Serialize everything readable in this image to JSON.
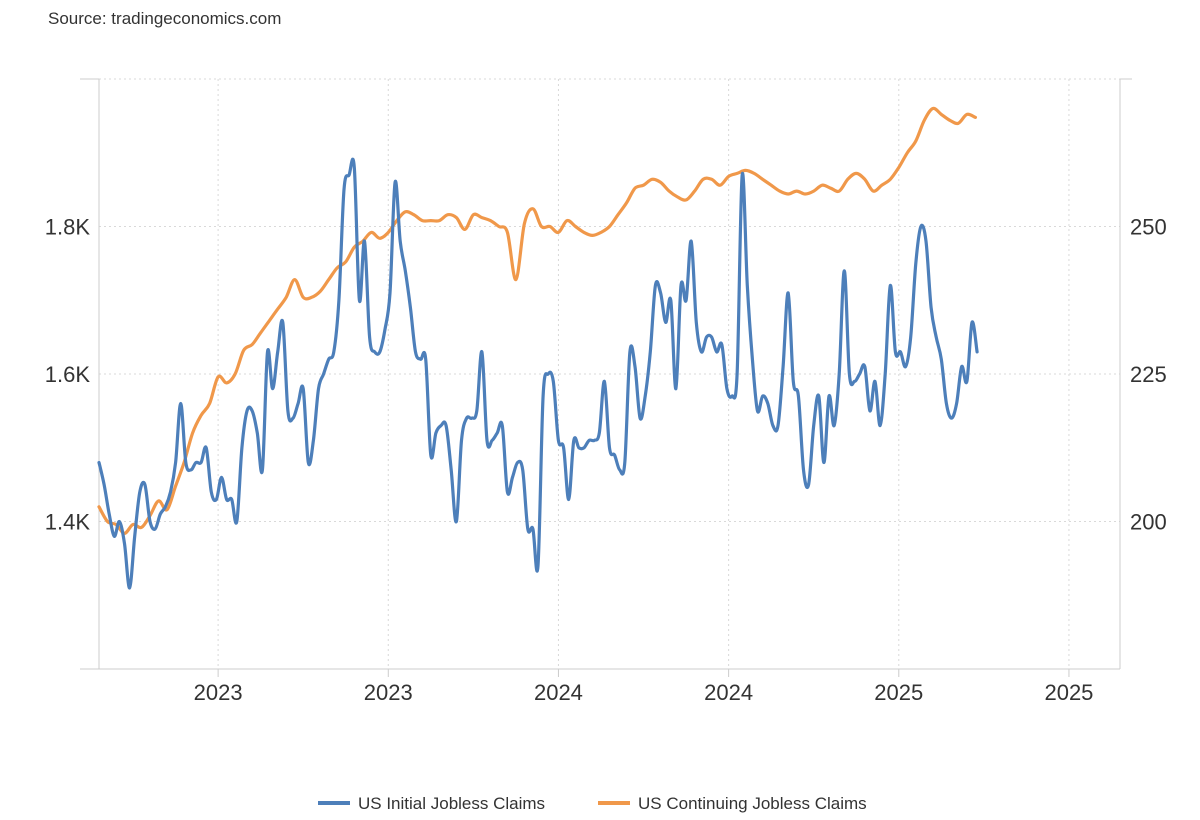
{
  "source": "Source: tradingeconomics.com",
  "colors": {
    "initial": "#4d7fba",
    "continuing": "#f0984a",
    "grid": "#d9d9d9",
    "axis": "#cccccc"
  },
  "chart_data": {
    "type": "line",
    "title": "",
    "xlabel": "",
    "x_tick_labels": [
      "2023",
      "2023",
      "2024",
      "2024",
      "2025",
      "2025"
    ],
    "x_tick_positions": [
      2.05,
      3.05,
      4.05,
      5.05,
      6.05,
      7.05
    ],
    "xlim": [
      1.35,
      7.35
    ],
    "grid": true,
    "legend_position": "bottom-center",
    "left_axis": {
      "label": "",
      "ylim": [
        1.2,
        2.0
      ],
      "ticks": [
        1.4,
        1.6,
        1.8
      ],
      "tick_labels": [
        "1.4K",
        "1.6K",
        "1.8K"
      ]
    },
    "right_axis": {
      "label": "",
      "ylim": [
        175,
        275
      ],
      "ticks": [
        200,
        225,
        250
      ],
      "tick_labels": [
        "200",
        "225",
        "250"
      ]
    },
    "series": [
      {
        "name": "US Initial Jobless Claims",
        "axis": "left",
        "color": "#4d7fba",
        "points": [
          [
            1.35,
            1.48
          ],
          [
            1.38,
            1.45
          ],
          [
            1.41,
            1.41
          ],
          [
            1.44,
            1.38
          ],
          [
            1.47,
            1.4
          ],
          [
            1.5,
            1.37
          ],
          [
            1.53,
            1.31
          ],
          [
            1.56,
            1.38
          ],
          [
            1.59,
            1.44
          ],
          [
            1.62,
            1.45
          ],
          [
            1.65,
            1.4
          ],
          [
            1.68,
            1.39
          ],
          [
            1.71,
            1.41
          ],
          [
            1.74,
            1.42
          ],
          [
            1.77,
            1.44
          ],
          [
            1.8,
            1.48
          ],
          [
            1.83,
            1.56
          ],
          [
            1.86,
            1.48
          ],
          [
            1.89,
            1.47
          ],
          [
            1.92,
            1.48
          ],
          [
            1.95,
            1.48
          ],
          [
            1.98,
            1.5
          ],
          [
            2.01,
            1.44
          ],
          [
            2.04,
            1.43
          ],
          [
            2.07,
            1.46
          ],
          [
            2.1,
            1.43
          ],
          [
            2.13,
            1.43
          ],
          [
            2.16,
            1.4
          ],
          [
            2.19,
            1.5
          ],
          [
            2.22,
            1.55
          ],
          [
            2.25,
            1.55
          ],
          [
            2.28,
            1.52
          ],
          [
            2.31,
            1.47
          ],
          [
            2.34,
            1.63
          ],
          [
            2.37,
            1.58
          ],
          [
            2.4,
            1.63
          ],
          [
            2.43,
            1.67
          ],
          [
            2.46,
            1.55
          ],
          [
            2.49,
            1.54
          ],
          [
            2.52,
            1.56
          ],
          [
            2.55,
            1.58
          ],
          [
            2.58,
            1.48
          ],
          [
            2.61,
            1.51
          ],
          [
            2.64,
            1.58
          ],
          [
            2.67,
            1.6
          ],
          [
            2.7,
            1.62
          ],
          [
            2.73,
            1.63
          ],
          [
            2.76,
            1.7
          ],
          [
            2.79,
            1.85
          ],
          [
            2.82,
            1.87
          ],
          [
            2.85,
            1.88
          ],
          [
            2.88,
            1.7
          ],
          [
            2.91,
            1.78
          ],
          [
            2.94,
            1.65
          ],
          [
            2.97,
            1.63
          ],
          [
            3.0,
            1.63
          ],
          [
            3.03,
            1.66
          ],
          [
            3.06,
            1.71
          ],
          [
            3.09,
            1.86
          ],
          [
            3.12,
            1.78
          ],
          [
            3.15,
            1.74
          ],
          [
            3.18,
            1.69
          ],
          [
            3.21,
            1.63
          ],
          [
            3.24,
            1.62
          ],
          [
            3.27,
            1.62
          ],
          [
            3.3,
            1.49
          ],
          [
            3.33,
            1.52
          ],
          [
            3.36,
            1.53
          ],
          [
            3.39,
            1.53
          ],
          [
            3.42,
            1.47
          ],
          [
            3.45,
            1.4
          ],
          [
            3.48,
            1.51
          ],
          [
            3.51,
            1.54
          ],
          [
            3.54,
            1.54
          ],
          [
            3.57,
            1.55
          ],
          [
            3.6,
            1.63
          ],
          [
            3.63,
            1.51
          ],
          [
            3.66,
            1.51
          ],
          [
            3.69,
            1.52
          ],
          [
            3.72,
            1.53
          ],
          [
            3.75,
            1.44
          ],
          [
            3.78,
            1.46
          ],
          [
            3.81,
            1.48
          ],
          [
            3.84,
            1.47
          ],
          [
            3.87,
            1.39
          ],
          [
            3.9,
            1.39
          ],
          [
            3.93,
            1.34
          ],
          [
            3.96,
            1.57
          ],
          [
            3.99,
            1.6
          ],
          [
            4.02,
            1.59
          ],
          [
            4.05,
            1.51
          ],
          [
            4.08,
            1.5
          ],
          [
            4.11,
            1.43
          ],
          [
            4.14,
            1.51
          ],
          [
            4.17,
            1.5
          ],
          [
            4.2,
            1.5
          ],
          [
            4.23,
            1.51
          ],
          [
            4.26,
            1.51
          ],
          [
            4.29,
            1.52
          ],
          [
            4.32,
            1.59
          ],
          [
            4.35,
            1.5
          ],
          [
            4.38,
            1.49
          ],
          [
            4.41,
            1.47
          ],
          [
            4.44,
            1.48
          ],
          [
            4.47,
            1.63
          ],
          [
            4.5,
            1.61
          ],
          [
            4.53,
            1.54
          ],
          [
            4.56,
            1.57
          ],
          [
            4.59,
            1.63
          ],
          [
            4.62,
            1.72
          ],
          [
            4.65,
            1.71
          ],
          [
            4.68,
            1.67
          ],
          [
            4.71,
            1.7
          ],
          [
            4.74,
            1.58
          ],
          [
            4.77,
            1.72
          ],
          [
            4.8,
            1.7
          ],
          [
            4.83,
            1.78
          ],
          [
            4.86,
            1.67
          ],
          [
            4.89,
            1.63
          ],
          [
            4.92,
            1.65
          ],
          [
            4.95,
            1.65
          ],
          [
            4.98,
            1.63
          ],
          [
            5.01,
            1.64
          ],
          [
            5.04,
            1.58
          ],
          [
            5.07,
            1.57
          ],
          [
            5.1,
            1.6
          ],
          [
            5.13,
            1.87
          ],
          [
            5.16,
            1.72
          ],
          [
            5.19,
            1.62
          ],
          [
            5.22,
            1.55
          ],
          [
            5.25,
            1.57
          ],
          [
            5.28,
            1.56
          ],
          [
            5.31,
            1.53
          ],
          [
            5.34,
            1.53
          ],
          [
            5.37,
            1.61
          ],
          [
            5.4,
            1.71
          ],
          [
            5.43,
            1.59
          ],
          [
            5.46,
            1.57
          ],
          [
            5.49,
            1.47
          ],
          [
            5.52,
            1.45
          ],
          [
            5.55,
            1.53
          ],
          [
            5.58,
            1.57
          ],
          [
            5.61,
            1.48
          ],
          [
            5.64,
            1.57
          ],
          [
            5.67,
            1.53
          ],
          [
            5.7,
            1.6
          ],
          [
            5.73,
            1.74
          ],
          [
            5.76,
            1.6
          ],
          [
            5.79,
            1.59
          ],
          [
            5.82,
            1.6
          ],
          [
            5.85,
            1.61
          ],
          [
            5.88,
            1.55
          ],
          [
            5.91,
            1.59
          ],
          [
            5.94,
            1.53
          ],
          [
            5.97,
            1.6
          ],
          [
            6.0,
            1.72
          ],
          [
            6.03,
            1.63
          ],
          [
            6.06,
            1.63
          ],
          [
            6.09,
            1.61
          ],
          [
            6.12,
            1.65
          ],
          [
            6.15,
            1.75
          ],
          [
            6.18,
            1.8
          ],
          [
            6.21,
            1.78
          ],
          [
            6.24,
            1.69
          ],
          [
            6.27,
            1.65
          ],
          [
            6.3,
            1.62
          ],
          [
            6.33,
            1.56
          ],
          [
            6.36,
            1.54
          ],
          [
            6.39,
            1.56
          ],
          [
            6.42,
            1.61
          ],
          [
            6.45,
            1.59
          ],
          [
            6.48,
            1.67
          ],
          [
            6.51,
            1.63
          ]
        ]
      },
      {
        "name": "US Continuing Jobless Claims",
        "axis": "right",
        "color": "#f0984a",
        "points": [
          [
            1.35,
            202.5
          ],
          [
            1.4,
            200.0
          ],
          [
            1.45,
            199.5
          ],
          [
            1.5,
            198.0
          ],
          [
            1.55,
            199.5
          ],
          [
            1.6,
            199.0
          ],
          [
            1.65,
            201.0
          ],
          [
            1.7,
            203.5
          ],
          [
            1.75,
            202.0
          ],
          [
            1.8,
            206.0
          ],
          [
            1.85,
            210.0
          ],
          [
            1.9,
            215.0
          ],
          [
            1.95,
            218.0
          ],
          [
            2.0,
            220.0
          ],
          [
            2.05,
            224.5
          ],
          [
            2.1,
            223.5
          ],
          [
            2.15,
            225.0
          ],
          [
            2.2,
            229.0
          ],
          [
            2.25,
            230.0
          ],
          [
            2.3,
            232.0
          ],
          [
            2.35,
            234.0
          ],
          [
            2.4,
            236.0
          ],
          [
            2.45,
            238.0
          ],
          [
            2.5,
            241.0
          ],
          [
            2.55,
            238.0
          ],
          [
            2.6,
            238.0
          ],
          [
            2.65,
            239.0
          ],
          [
            2.7,
            241.0
          ],
          [
            2.75,
            243.0
          ],
          [
            2.8,
            244.0
          ],
          [
            2.85,
            246.5
          ],
          [
            2.9,
            247.5
          ],
          [
            2.95,
            249.0
          ],
          [
            3.0,
            248.0
          ],
          [
            3.05,
            249.0
          ],
          [
            3.1,
            251.0
          ],
          [
            3.15,
            252.5
          ],
          [
            3.2,
            252.0
          ],
          [
            3.25,
            251.0
          ],
          [
            3.3,
            251.0
          ],
          [
            3.35,
            251.0
          ],
          [
            3.4,
            252.0
          ],
          [
            3.45,
            251.5
          ],
          [
            3.5,
            249.5
          ],
          [
            3.55,
            252.0
          ],
          [
            3.6,
            251.5
          ],
          [
            3.65,
            251.0
          ],
          [
            3.7,
            250.0
          ],
          [
            3.75,
            249.0
          ],
          [
            3.8,
            241.0
          ],
          [
            3.85,
            250.5
          ],
          [
            3.9,
            253.0
          ],
          [
            3.95,
            250.0
          ],
          [
            4.0,
            250.0
          ],
          [
            4.05,
            249.0
          ],
          [
            4.1,
            251.0
          ],
          [
            4.15,
            250.0
          ],
          [
            4.2,
            249.0
          ],
          [
            4.25,
            248.5
          ],
          [
            4.3,
            249.0
          ],
          [
            4.35,
            250.0
          ],
          [
            4.4,
            252.0
          ],
          [
            4.45,
            254.0
          ],
          [
            4.5,
            256.5
          ],
          [
            4.55,
            257.0
          ],
          [
            4.6,
            258.0
          ],
          [
            4.65,
            257.5
          ],
          [
            4.7,
            256.0
          ],
          [
            4.75,
            255.0
          ],
          [
            4.8,
            254.5
          ],
          [
            4.85,
            256.0
          ],
          [
            4.9,
            258.0
          ],
          [
            4.95,
            258.0
          ],
          [
            5.0,
            257.0
          ],
          [
            5.05,
            258.5
          ],
          [
            5.1,
            259.0
          ],
          [
            5.15,
            259.5
          ],
          [
            5.2,
            259.0
          ],
          [
            5.25,
            258.0
          ],
          [
            5.3,
            257.0
          ],
          [
            5.35,
            256.0
          ],
          [
            5.4,
            255.5
          ],
          [
            5.45,
            256.0
          ],
          [
            5.5,
            255.5
          ],
          [
            5.55,
            256.0
          ],
          [
            5.6,
            257.0
          ],
          [
            5.65,
            256.5
          ],
          [
            5.7,
            256.0
          ],
          [
            5.75,
            258.0
          ],
          [
            5.8,
            259.0
          ],
          [
            5.85,
            258.0
          ],
          [
            5.9,
            256.0
          ],
          [
            5.95,
            257.0
          ],
          [
            6.0,
            258.0
          ],
          [
            6.05,
            260.0
          ],
          [
            6.1,
            262.5
          ],
          [
            6.15,
            264.5
          ],
          [
            6.2,
            268.0
          ],
          [
            6.25,
            270.0
          ],
          [
            6.3,
            269.0
          ],
          [
            6.35,
            268.0
          ],
          [
            6.4,
            267.5
          ],
          [
            6.45,
            269.0
          ],
          [
            6.5,
            268.5
          ]
        ]
      }
    ]
  }
}
